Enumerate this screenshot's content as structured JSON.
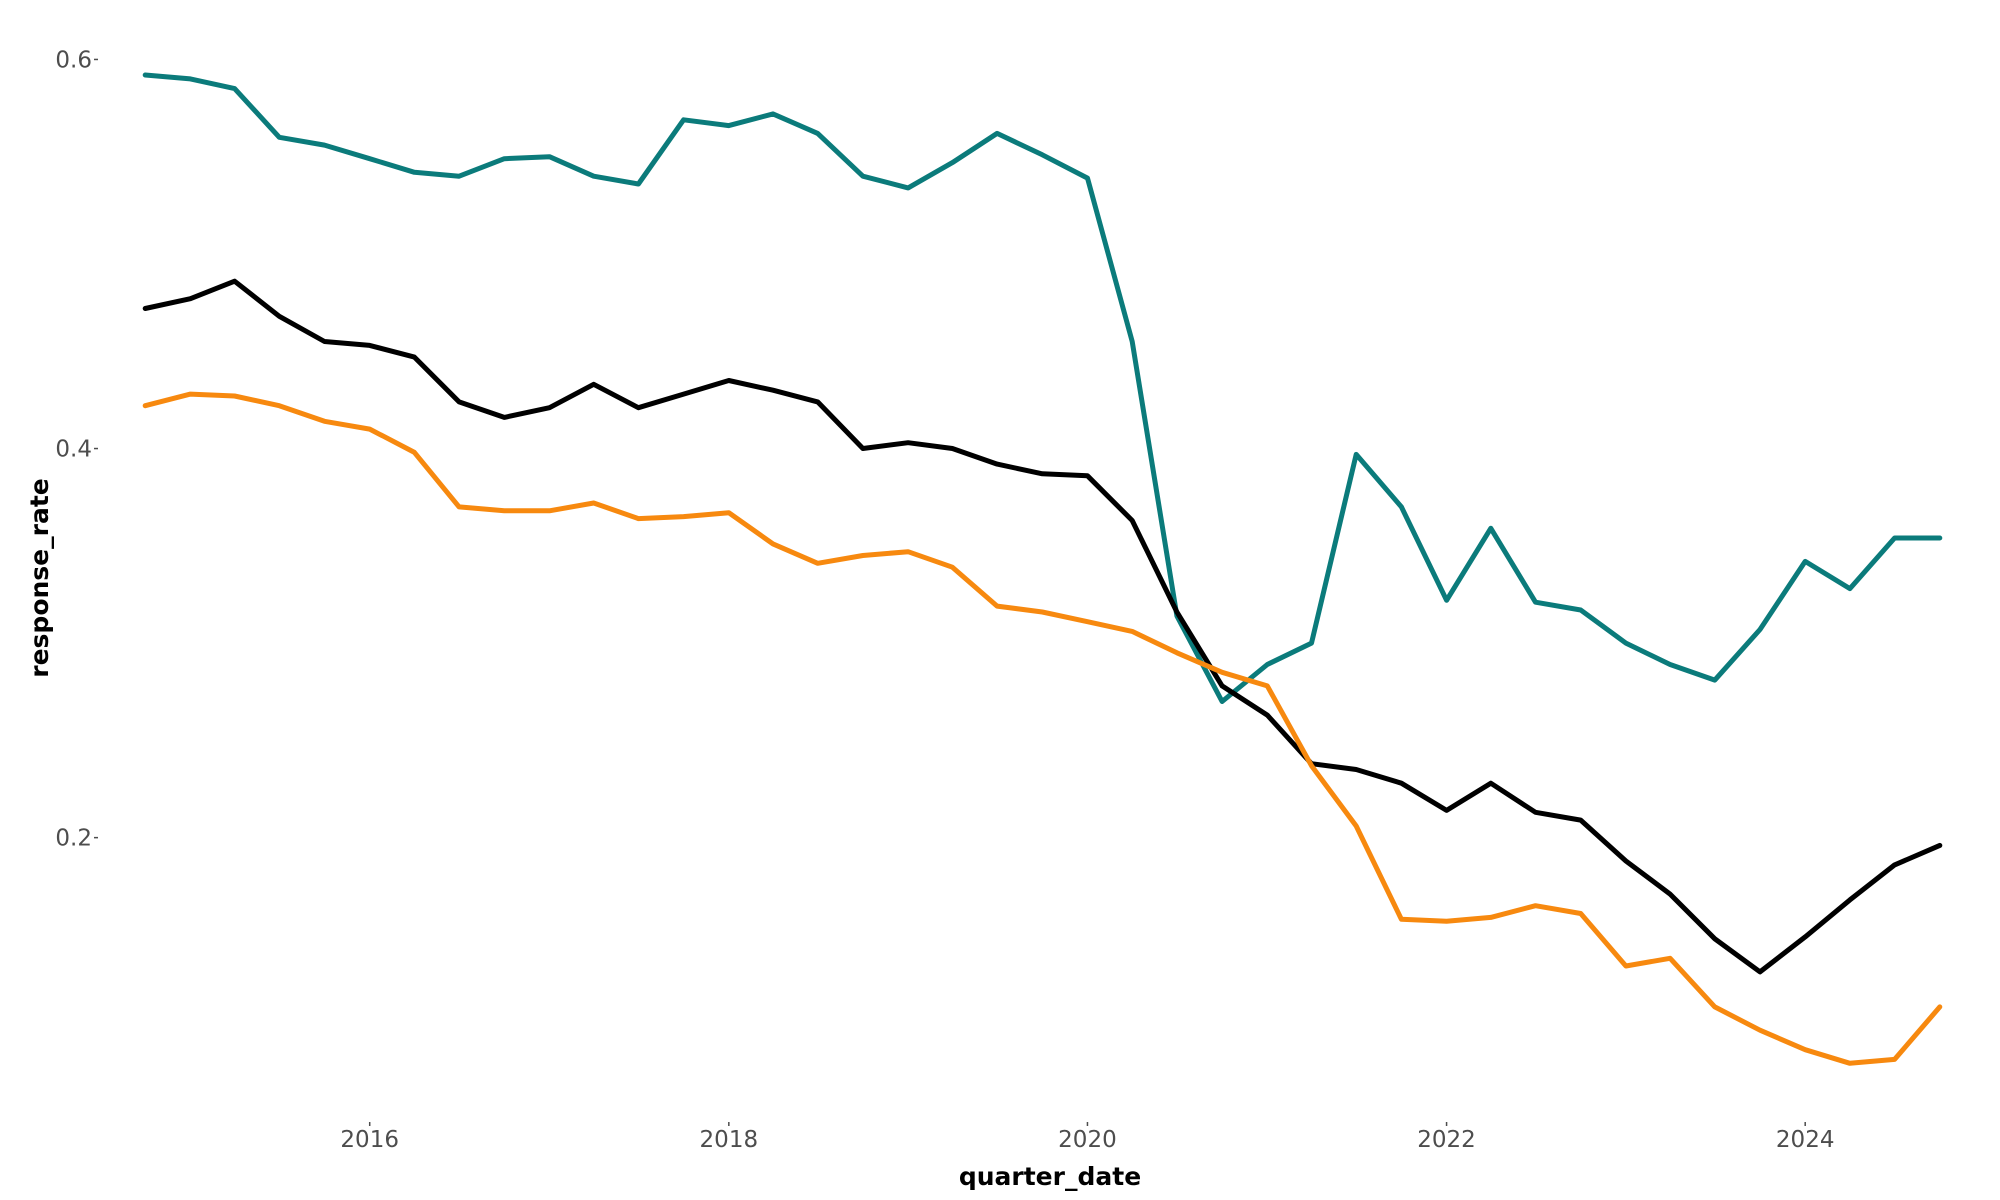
{
  "chart_data": {
    "type": "line",
    "xlabel": "quarter_date",
    "ylabel": "response_rate",
    "x_type": "date",
    "xlim": [
      "2014-07-01",
      "2025-01-01"
    ],
    "ylim": [
      0.06,
      0.61
    ],
    "x_ticks": [
      {
        "label": "2016",
        "date": "2016-01-01"
      },
      {
        "label": "2018",
        "date": "2018-01-01"
      },
      {
        "label": "2020",
        "date": "2020-01-01"
      },
      {
        "label": "2022",
        "date": "2022-01-01"
      },
      {
        "label": "2024",
        "date": "2024-01-01"
      }
    ],
    "y_ticks": [
      {
        "label": "0.2",
        "value": 0.2
      },
      {
        "label": "0.4",
        "value": 0.4
      },
      {
        "label": "0.6",
        "value": 0.6
      }
    ],
    "grid": false,
    "legend": "none",
    "x": [
      "2014-10-01",
      "2015-01-01",
      "2015-04-01",
      "2015-07-01",
      "2015-10-01",
      "2016-01-01",
      "2016-04-01",
      "2016-07-01",
      "2016-10-01",
      "2017-01-01",
      "2017-04-01",
      "2017-07-01",
      "2017-10-01",
      "2018-01-01",
      "2018-04-01",
      "2018-07-01",
      "2018-10-01",
      "2019-01-01",
      "2019-04-01",
      "2019-07-01",
      "2019-10-01",
      "2020-01-01",
      "2020-04-01",
      "2020-07-01",
      "2020-10-01",
      "2021-01-01",
      "2021-04-01",
      "2021-07-01",
      "2021-10-01",
      "2022-01-01",
      "2022-04-01",
      "2022-07-01",
      "2022-10-01",
      "2023-01-01",
      "2023-04-01",
      "2023-07-01",
      "2023-10-01",
      "2024-01-01",
      "2024-04-01",
      "2024-07-01",
      "2024-10-01"
    ],
    "series": [
      {
        "color": "#0b7b7b",
        "values": [
          0.592,
          0.59,
          0.585,
          0.56,
          0.556,
          0.549,
          0.542,
          0.54,
          0.549,
          0.55,
          0.54,
          0.536,
          0.569,
          0.566,
          0.572,
          0.562,
          0.54,
          0.534,
          0.547,
          0.562,
          0.551,
          0.539,
          0.455,
          0.314,
          0.27,
          0.289,
          0.3,
          0.397,
          0.37,
          0.322,
          0.359,
          0.321,
          0.317,
          0.3,
          0.289,
          0.281,
          0.307,
          0.342,
          0.328,
          0.354,
          0.354
        ]
      },
      {
        "color": "#000000",
        "values": [
          0.472,
          0.477,
          0.486,
          0.468,
          0.455,
          0.453,
          0.447,
          0.424,
          0.416,
          0.421,
          0.433,
          0.421,
          0.428,
          0.435,
          0.43,
          0.424,
          0.4,
          0.403,
          0.4,
          0.392,
          0.387,
          0.386,
          0.363,
          0.316,
          0.278,
          0.263,
          0.238,
          0.235,
          0.228,
          0.214,
          0.228,
          0.213,
          0.209,
          0.188,
          0.171,
          0.148,
          0.131,
          0.149,
          0.168,
          0.186,
          0.196
        ]
      },
      {
        "color": "#f7890f",
        "values": [
          0.422,
          0.428,
          0.427,
          0.422,
          0.414,
          0.41,
          0.398,
          0.37,
          0.368,
          0.368,
          0.372,
          0.364,
          0.365,
          0.367,
          0.351,
          0.341,
          0.345,
          0.347,
          0.339,
          0.319,
          0.316,
          0.311,
          0.306,
          0.295,
          0.285,
          0.278,
          0.237,
          0.206,
          0.158,
          0.157,
          0.159,
          0.165,
          0.161,
          0.134,
          0.138,
          0.113,
          0.101,
          0.091,
          0.084,
          0.086,
          0.113
        ]
      }
    ]
  }
}
